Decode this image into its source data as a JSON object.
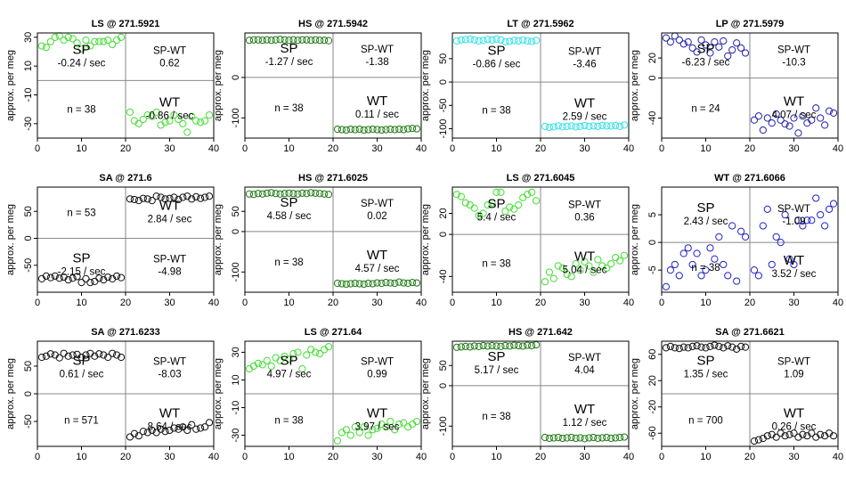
{
  "figure": {
    "ylabel": "approx. per meg"
  },
  "chart_data": [
    {
      "type": "scatter",
      "title": "LS @ 271.5921",
      "ylabel": "approx. per meg",
      "color": "#44dd33",
      "xlim": [
        0,
        40
      ],
      "ylim": [
        -40,
        33
      ],
      "xticks": [
        0,
        10,
        20,
        30,
        40
      ],
      "yticks": [
        -30,
        -10,
        10,
        30
      ],
      "x": [
        1,
        2,
        3,
        4,
        5,
        6,
        7,
        8,
        9,
        10,
        11,
        12,
        13,
        14,
        15,
        16,
        17,
        18,
        19,
        21,
        22,
        23,
        24,
        25,
        26,
        27,
        28,
        29,
        30,
        31,
        32,
        33,
        34,
        35,
        36,
        37,
        38,
        39
      ],
      "y": [
        24,
        23,
        27,
        30,
        31,
        28,
        30,
        29,
        26,
        22,
        28,
        24,
        27,
        27,
        27,
        28,
        25,
        28,
        30,
        -22,
        -28,
        -30,
        -27,
        -24,
        -25,
        -22,
        -31,
        -29,
        -28,
        -24,
        -27,
        -30,
        -36,
        -25,
        -28,
        -29,
        -28,
        -24
      ],
      "SP": {
        "label": "SP",
        "rate": "-0.24 / sec"
      },
      "SPWT": {
        "label": "SP-WT",
        "value": "0.62"
      },
      "WT": {
        "label": "WT",
        "rate": "-0.86 / sec"
      },
      "n": "n = 38",
      "hline": 0,
      "vline": 20
    },
    {
      "type": "scatter",
      "title": "HS @ 271.5942",
      "ylabel": "approx. per meg",
      "color": "#1f7a14",
      "xlim": [
        0,
        40
      ],
      "ylim": [
        -150,
        110
      ],
      "xticks": [
        0,
        10,
        20,
        30,
        40
      ],
      "yticks": [
        -100,
        0
      ],
      "x": [
        1,
        2,
        3,
        4,
        5,
        6,
        7,
        8,
        9,
        10,
        11,
        12,
        13,
        14,
        15,
        16,
        17,
        18,
        19,
        21,
        22,
        23,
        24,
        25,
        26,
        27,
        28,
        29,
        30,
        31,
        32,
        33,
        34,
        35,
        36,
        37,
        38,
        39
      ],
      "y": [
        92,
        93,
        93,
        92,
        93,
        92,
        93,
        94,
        93,
        92,
        93,
        92,
        93,
        93,
        92,
        93,
        92,
        92,
        91,
        -128,
        -129,
        -130,
        -128,
        -129,
        -128,
        -130,
        -129,
        -128,
        -129,
        -130,
        -129,
        -128,
        -129,
        -128,
        -129,
        -127,
        -126,
        -127
      ],
      "SP": {
        "label": "SP",
        "rate": "-1.27 / sec"
      },
      "SPWT": {
        "label": "SP-WT",
        "value": "-1.38"
      },
      "WT": {
        "label": "WT",
        "rate": "0.11 / sec"
      },
      "n": "n = 38",
      "hline": 0,
      "vline": 20
    },
    {
      "type": "scatter",
      "title": "LT @ 271.5962",
      "ylabel": "approx. per meg",
      "color": "#33e0e8",
      "xlim": [
        0,
        40
      ],
      "ylim": [
        -120,
        105
      ],
      "xticks": [
        0,
        10,
        20,
        30,
        40
      ],
      "yticks": [
        -100,
        -50,
        0,
        50
      ],
      "x": [
        1,
        2,
        3,
        4,
        5,
        6,
        7,
        8,
        9,
        10,
        11,
        12,
        13,
        14,
        15,
        16,
        17,
        18,
        19,
        21,
        22,
        23,
        24,
        25,
        26,
        27,
        28,
        29,
        30,
        31,
        32,
        33,
        34,
        35,
        36,
        37,
        38,
        39
      ],
      "y": [
        88,
        90,
        91,
        92,
        90,
        88,
        89,
        91,
        90,
        92,
        90,
        86,
        87,
        89,
        88,
        90,
        88,
        87,
        89,
        -95,
        -97,
        -96,
        -94,
        -96,
        -95,
        -94,
        -96,
        -95,
        -93,
        -95,
        -94,
        -95,
        -93,
        -94,
        -94,
        -93,
        -95,
        -92
      ],
      "SP": {
        "label": "SP",
        "rate": "-0.86 / sec"
      },
      "SPWT": {
        "label": "SP-WT",
        "value": "-3.46"
      },
      "WT": {
        "label": "WT",
        "rate": "2.59 / sec"
      },
      "n": "n = 38",
      "hline": 0,
      "vline": 20
    },
    {
      "type": "scatter",
      "title": "LP @ 271.5979",
      "ylabel": "approx. per meg",
      "color": "#2222aa",
      "xlim": [
        0,
        40
      ],
      "ylim": [
        -60,
        45
      ],
      "xticks": [
        0,
        10,
        20,
        30,
        40
      ],
      "yticks": [
        -40,
        0,
        20
      ],
      "x": [
        1,
        2,
        3,
        4,
        5,
        6,
        7,
        8,
        9,
        10,
        11,
        12,
        13,
        14,
        15,
        16,
        17,
        18,
        19,
        21,
        22,
        23,
        24,
        25,
        26,
        27,
        28,
        29,
        30,
        31,
        32,
        33,
        34,
        35,
        36,
        37,
        38,
        39
      ],
      "y": [
        40,
        36,
        42,
        38,
        34,
        36,
        30,
        26,
        38,
        33,
        25,
        36,
        31,
        37,
        22,
        28,
        35,
        30,
        25,
        -42,
        -38,
        -52,
        -40,
        -45,
        -36,
        -42,
        -46,
        -48,
        -40,
        -55,
        -38,
        -45,
        -42,
        -30,
        -40,
        -47,
        -33,
        -35
      ],
      "SP": {
        "label": "SP",
        "rate": "-6.23 / sec"
      },
      "SPWT": {
        "label": "SP-WT",
        "value": "-10.3"
      },
      "WT": {
        "label": "WT",
        "rate": "4.07 / sec"
      },
      "n": "n = 24",
      "hline": 0,
      "vline": 20
    },
    {
      "type": "scatter",
      "title": "SA @ 271.6",
      "ylabel": "approx. per meg",
      "color": "#111111",
      "xlim": [
        0,
        40
      ],
      "ylim": [
        -100,
        95
      ],
      "xticks": [
        0,
        10,
        20,
        30,
        40
      ],
      "yticks": [
        -50,
        0,
        50
      ],
      "x": [
        1,
        2,
        3,
        4,
        5,
        6,
        7,
        8,
        9,
        10,
        11,
        12,
        13,
        14,
        15,
        16,
        17,
        18,
        19,
        21,
        22,
        23,
        24,
        25,
        26,
        27,
        28,
        29,
        30,
        31,
        32,
        33,
        34,
        35,
        36,
        37,
        38,
        39
      ],
      "y": [
        -75,
        -70,
        -73,
        -70,
        -74,
        -72,
        -77,
        -74,
        -71,
        -82,
        -75,
        -82,
        -80,
        -74,
        -77,
        -72,
        -75,
        -70,
        -73,
        73,
        72,
        70,
        74,
        73,
        70,
        78,
        76,
        73,
        74,
        76,
        72,
        76,
        78,
        73,
        77,
        74,
        76,
        78
      ],
      "SP": {
        "label": "SP",
        "rate": "-2.15 / sec"
      },
      "SPWT": {
        "label": "SP-WT",
        "value": "-4.98"
      },
      "WT": {
        "label": "WT",
        "rate": "2.84 / sec"
      },
      "n": "n = 53",
      "hline": 0,
      "vline": 20
    },
    {
      "type": "scatter",
      "title": "HS @ 271.6025",
      "ylabel": "approx. per meg",
      "color": "#1f7a14",
      "xlim": [
        0,
        40
      ],
      "ylim": [
        -150,
        110
      ],
      "xticks": [
        0,
        10,
        20,
        30,
        40
      ],
      "yticks": [
        -100,
        0,
        50
      ],
      "x": [
        1,
        2,
        3,
        4,
        5,
        6,
        7,
        8,
        9,
        10,
        11,
        12,
        13,
        14,
        15,
        16,
        17,
        18,
        19,
        21,
        22,
        23,
        24,
        25,
        26,
        27,
        28,
        29,
        30,
        31,
        32,
        33,
        34,
        35,
        36,
        37,
        38,
        39
      ],
      "y": [
        93,
        92,
        94,
        93,
        95,
        96,
        94,
        93,
        94,
        95,
        94,
        93,
        95,
        94,
        96,
        95,
        94,
        93,
        92,
        -128,
        -129,
        -130,
        -129,
        -128,
        -129,
        -130,
        -128,
        -129,
        -127,
        -128,
        -126,
        -127,
        -128,
        -125,
        -127,
        -128,
        -126,
        -127
      ],
      "SP": {
        "label": "SP",
        "rate": "4.58 / sec"
      },
      "SPWT": {
        "label": "SP-WT",
        "value": "0.02"
      },
      "WT": {
        "label": "WT",
        "rate": "4.57 / sec"
      },
      "n": "n = 38",
      "hline": 0,
      "vline": 20
    },
    {
      "type": "scatter",
      "title": "LS @ 271.6045",
      "ylabel": "approx. per meg",
      "color": "#44dd33",
      "xlim": [
        0,
        40
      ],
      "ylim": [
        -55,
        45
      ],
      "xticks": [
        0,
        10,
        20,
        30,
        40
      ],
      "yticks": [
        -40,
        0,
        20
      ],
      "x": [
        1,
        2,
        3,
        4,
        5,
        6,
        7,
        8,
        9,
        10,
        11,
        12,
        13,
        14,
        15,
        16,
        17,
        18,
        19,
        21,
        22,
        23,
        24,
        25,
        26,
        27,
        28,
        29,
        30,
        31,
        32,
        33,
        34,
        35,
        36,
        37,
        38,
        39
      ],
      "y": [
        38,
        36,
        30,
        28,
        25,
        18,
        20,
        28,
        30,
        40,
        40,
        22,
        26,
        24,
        28,
        35,
        38,
        40,
        32,
        -45,
        -36,
        -42,
        -30,
        -32,
        -38,
        -40,
        -28,
        -34,
        -26,
        -30,
        -36,
        -24,
        -30,
        -32,
        -28,
        -22,
        -25,
        -20
      ],
      "SP": {
        "label": "SP",
        "rate": "5.4 / sec"
      },
      "SPWT": {
        "label": "SP-WT",
        "value": "0.36"
      },
      "WT": {
        "label": "WT",
        "rate": "5.04 / sec"
      },
      "n": "n = 38",
      "hline": 0,
      "vline": 20
    },
    {
      "type": "scatter",
      "title": "WT @ 271.6066",
      "ylabel": "approx. per meg",
      "color": "#2222cc",
      "xlim": [
        0,
        40
      ],
      "ylim": [
        -9,
        10
      ],
      "xticks": [
        0,
        10,
        20,
        30,
        40
      ],
      "yticks": [
        -5,
        0,
        5
      ],
      "x": [
        1,
        2,
        3,
        4,
        5,
        6,
        7,
        8,
        9,
        10,
        11,
        12,
        13,
        14,
        15,
        16,
        17,
        18,
        19,
        21,
        22,
        23,
        24,
        25,
        26,
        27,
        28,
        29,
        30,
        31,
        32,
        33,
        34,
        35,
        36,
        37,
        38,
        39
      ],
      "y": [
        -8,
        -5,
        -4,
        -6,
        -2,
        -1,
        -4,
        -2,
        -6,
        -5,
        -1,
        -3,
        1,
        -4,
        -6,
        3,
        -7,
        2,
        1,
        -5,
        -6,
        3,
        6,
        -4,
        1,
        0,
        5,
        -3,
        -4,
        4,
        3,
        4,
        4,
        8,
        5,
        3,
        6,
        7
      ],
      "SP": {
        "label": "SP",
        "rate": "2.43 / sec"
      },
      "SPWT": {
        "label": "SP-WT",
        "value": "-1.09"
      },
      "WT": {
        "label": "WT",
        "rate": "3.52 / sec"
      },
      "n": "n = 38",
      "hline": 0,
      "vline": 20
    },
    {
      "type": "scatter",
      "title": "SA @ 271.6233",
      "ylabel": "approx. per meg",
      "color": "#111111",
      "xlim": [
        0,
        40
      ],
      "ylim": [
        -95,
        95
      ],
      "xticks": [
        0,
        10,
        20,
        30,
        40
      ],
      "yticks": [
        -50,
        0,
        50
      ],
      "x": [
        1,
        2,
        3,
        4,
        5,
        6,
        7,
        8,
        9,
        10,
        11,
        12,
        13,
        14,
        15,
        16,
        17,
        18,
        19,
        21,
        22,
        23,
        24,
        25,
        26,
        27,
        28,
        29,
        30,
        31,
        32,
        33,
        34,
        35,
        36,
        37,
        38,
        39
      ],
      "y": [
        66,
        68,
        72,
        70,
        65,
        73,
        68,
        70,
        71,
        66,
        70,
        73,
        68,
        72,
        70,
        66,
        73,
        70,
        66,
        -78,
        -72,
        -76,
        -68,
        -70,
        -66,
        -70,
        -64,
        -68,
        -66,
        -62,
        -64,
        -60,
        -66,
        -56,
        -64,
        -62,
        -60,
        -52
      ],
      "SP": {
        "label": "SP",
        "rate": "0.61 / sec"
      },
      "SPWT": {
        "label": "SP-WT",
        "value": "-8.03"
      },
      "WT": {
        "label": "WT",
        "rate": "8.64 / sec"
      },
      "n": "n = 571",
      "hline": 0,
      "vline": 20
    },
    {
      "type": "scatter",
      "title": "LS @ 271.64",
      "ylabel": "approx. per meg",
      "color": "#44dd33",
      "xlim": [
        0,
        40
      ],
      "ylim": [
        -38,
        38
      ],
      "xticks": [
        0,
        10,
        20,
        30,
        40
      ],
      "yticks": [
        -30,
        -10,
        10,
        30
      ],
      "x": [
        1,
        2,
        3,
        4,
        5,
        6,
        7,
        8,
        9,
        10,
        11,
        12,
        13,
        14,
        15,
        16,
        17,
        18,
        19,
        21,
        22,
        23,
        24,
        25,
        26,
        27,
        28,
        29,
        30,
        31,
        32,
        33,
        34,
        35,
        36,
        37,
        38,
        39
      ],
      "y": [
        18,
        20,
        22,
        21,
        24,
        20,
        26,
        24,
        27,
        25,
        29,
        30,
        18,
        28,
        32,
        30,
        29,
        32,
        34,
        -34,
        -28,
        -26,
        -30,
        -24,
        -28,
        -24,
        -30,
        -26,
        -25,
        -22,
        -24,
        -20,
        -26,
        -22,
        -21,
        -24,
        -22,
        -20
      ],
      "SP": {
        "label": "SP",
        "rate": "4.97 / sec"
      },
      "SPWT": {
        "label": "SP-WT",
        "value": "0.99"
      },
      "WT": {
        "label": "WT",
        "rate": "3.97 / sec"
      },
      "n": "n = 38",
      "hline": 0,
      "vline": 20
    },
    {
      "type": "scatter",
      "title": "HS @ 271.642",
      "ylabel": "approx. per meg",
      "color": "#1f7a14",
      "xlim": [
        0,
        40
      ],
      "ylim": [
        -150,
        110
      ],
      "xticks": [
        0,
        10,
        20,
        30,
        40
      ],
      "yticks": [
        -100,
        0,
        50
      ],
      "x": [
        1,
        2,
        3,
        4,
        5,
        6,
        7,
        8,
        9,
        10,
        11,
        12,
        13,
        14,
        15,
        16,
        17,
        18,
        19,
        21,
        22,
        23,
        24,
        25,
        26,
        27,
        28,
        29,
        30,
        31,
        32,
        33,
        34,
        35,
        36,
        37,
        38,
        39
      ],
      "y": [
        95,
        96,
        97,
        96,
        98,
        97,
        99,
        98,
        99,
        98,
        97,
        99,
        98,
        100,
        99,
        98,
        100,
        99,
        101,
        -128,
        -130,
        -129,
        -128,
        -130,
        -129,
        -128,
        -130,
        -129,
        -131,
        -129,
        -128,
        -130,
        -129,
        -128,
        -130,
        -129,
        -128,
        -127
      ],
      "SP": {
        "label": "SP",
        "rate": "5.17 / sec"
      },
      "SPWT": {
        "label": "SP-WT",
        "value": "4.04"
      },
      "WT": {
        "label": "WT",
        "rate": "1.12 / sec"
      },
      "n": "n = 38",
      "hline": 0,
      "vline": 20
    },
    {
      "type": "scatter",
      "title": "SA @ 271.6621",
      "ylabel": "approx. per meg",
      "color": "#111111",
      "xlim": [
        0,
        40
      ],
      "ylim": [
        -80,
        80
      ],
      "xticks": [
        0,
        10,
        20,
        30,
        40
      ],
      "yticks": [
        -60,
        -20,
        20,
        60
      ],
      "x": [
        1,
        2,
        3,
        4,
        5,
        6,
        7,
        8,
        9,
        10,
        11,
        12,
        13,
        14,
        15,
        16,
        17,
        18,
        19,
        21,
        22,
        23,
        24,
        25,
        26,
        27,
        28,
        29,
        30,
        31,
        32,
        33,
        34,
        35,
        36,
        37,
        38,
        39
      ],
      "y": [
        70,
        72,
        70,
        69,
        71,
        70,
        72,
        73,
        71,
        70,
        72,
        74,
        72,
        70,
        73,
        71,
        68,
        72,
        71,
        -72,
        -70,
        -68,
        -64,
        -62,
        -66,
        -60,
        -64,
        -62,
        -60,
        -66,
        -62,
        -64,
        -60,
        -66,
        -62,
        -64,
        -60,
        -64
      ],
      "SP": {
        "label": "SP",
        "rate": "1.35 / sec"
      },
      "SPWT": {
        "label": "SP-WT",
        "value": "1.09"
      },
      "WT": {
        "label": "WT",
        "rate": "0.26 / sec"
      },
      "n": "n = 700",
      "hline": 0,
      "vline": 20
    }
  ]
}
